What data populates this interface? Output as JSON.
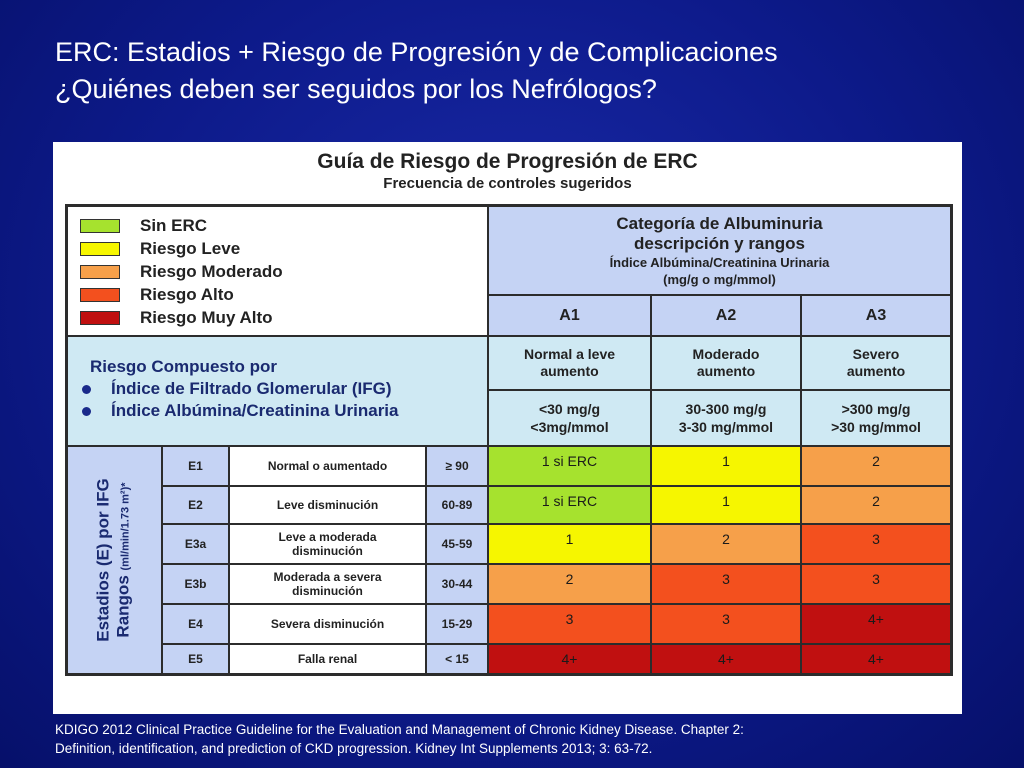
{
  "slide": {
    "title_line1": "ERC: Estadios + Riesgo de Progresión y de Complicaciones",
    "title_line2": "¿Quiénes deben ser seguidos por los Nefrólogos?",
    "footnote_line1": "KDIGO 2012 Clinical Practice Guideline for the Evaluation and Management of Chronic Kidney Disease. Chapter 2:",
    "footnote_line2": "Definition, identification, and prediction of CKD progression. Kidney Int Supplements 2013; 3: 63-72."
  },
  "panel": {
    "title": "Guía de Riesgo de Progresión de ERC",
    "subtitle": "Frecuencia de controles sugeridos"
  },
  "legend": [
    {
      "label": "Sin ERC",
      "color": "#a6e22e"
    },
    {
      "label": "Riesgo  Leve",
      "color": "#f6f600"
    },
    {
      "label": "Riesgo  Moderado",
      "color": "#f6a04a"
    },
    {
      "label": "Riesgo  Alto",
      "color": "#f3501e"
    },
    {
      "label": "Riesgo  Muy Alto",
      "color": "#c01010"
    }
  ],
  "albuminuria": {
    "header_line1": "Categoría de Albuminuria",
    "header_line2": "descripción y rangos",
    "header_line3": "Índice Albúmina/Creatinina Urinaria",
    "header_line4": "(mg/g o mg/mmol)",
    "columns": [
      {
        "code": "A1",
        "desc_line1": "Normal a leve",
        "desc_line2": "aumento",
        "range_line1": "<30 mg/g",
        "range_line2": "<3mg/mmol"
      },
      {
        "code": "A2",
        "desc_line1": "Moderado",
        "desc_line2": "aumento",
        "range_line1": "30-300  mg/g",
        "range_line2": "3-30 mg/mmol"
      },
      {
        "code": "A3",
        "desc_line1": "Severo",
        "desc_line2": "aumento",
        "range_line1": ">300  mg/g",
        "range_line2": ">30 mg/mmol"
      }
    ]
  },
  "composite": {
    "title": "Riesgo Compuesto por",
    "item1": "Índice de Filtrado Glomerular (IFG)",
    "item2": "Índice Albúmina/Creatinina Urinaria"
  },
  "stages": {
    "vertical_label_line1": "Estadios (E) por IFG",
    "vertical_label_line2": "Rangos",
    "vertical_label_unit": "(ml/min/1.73  m²)*",
    "rows": [
      {
        "code": "E1",
        "desc": "Normal  o aumentado",
        "range": "≥ 90",
        "cells": [
          {
            "text": "1 si ERC",
            "color": "#a6e22e"
          },
          {
            "text": "1",
            "color": "#f6f600"
          },
          {
            "text": "2",
            "color": "#f6a04a"
          }
        ]
      },
      {
        "code": "E2",
        "desc": "Leve disminución",
        "range": "60-89",
        "cells": [
          {
            "text": "1 si ERC",
            "color": "#a6e22e"
          },
          {
            "text": "1",
            "color": "#f6f600"
          },
          {
            "text": "2",
            "color": "#f6a04a"
          }
        ]
      },
      {
        "code": "E3a",
        "desc": "Leve a moderada disminución",
        "range": "45-59",
        "cells": [
          {
            "text": "1",
            "color": "#f6f600"
          },
          {
            "text": "2",
            "color": "#f6a04a"
          },
          {
            "text": "3",
            "color": "#f3501e"
          }
        ]
      },
      {
        "code": "E3b",
        "desc": "Moderada a severa disminución",
        "range": "30-44",
        "cells": [
          {
            "text": "2",
            "color": "#f6a04a"
          },
          {
            "text": "3",
            "color": "#f3501e"
          },
          {
            "text": "3",
            "color": "#f3501e"
          }
        ]
      },
      {
        "code": "E4",
        "desc": "Severa disminución",
        "range": "15-29",
        "cells": [
          {
            "text": "3",
            "color": "#f3501e"
          },
          {
            "text": "3",
            "color": "#f3501e"
          },
          {
            "text": "4+",
            "color": "#c01010"
          }
        ]
      },
      {
        "code": "E5",
        "desc": "Falla renal",
        "range": "< 15",
        "cells": [
          {
            "text": "4+",
            "color": "#c01010"
          },
          {
            "text": "4+",
            "color": "#c01010"
          },
          {
            "text": "4+",
            "color": "#c01010"
          }
        ]
      }
    ]
  }
}
